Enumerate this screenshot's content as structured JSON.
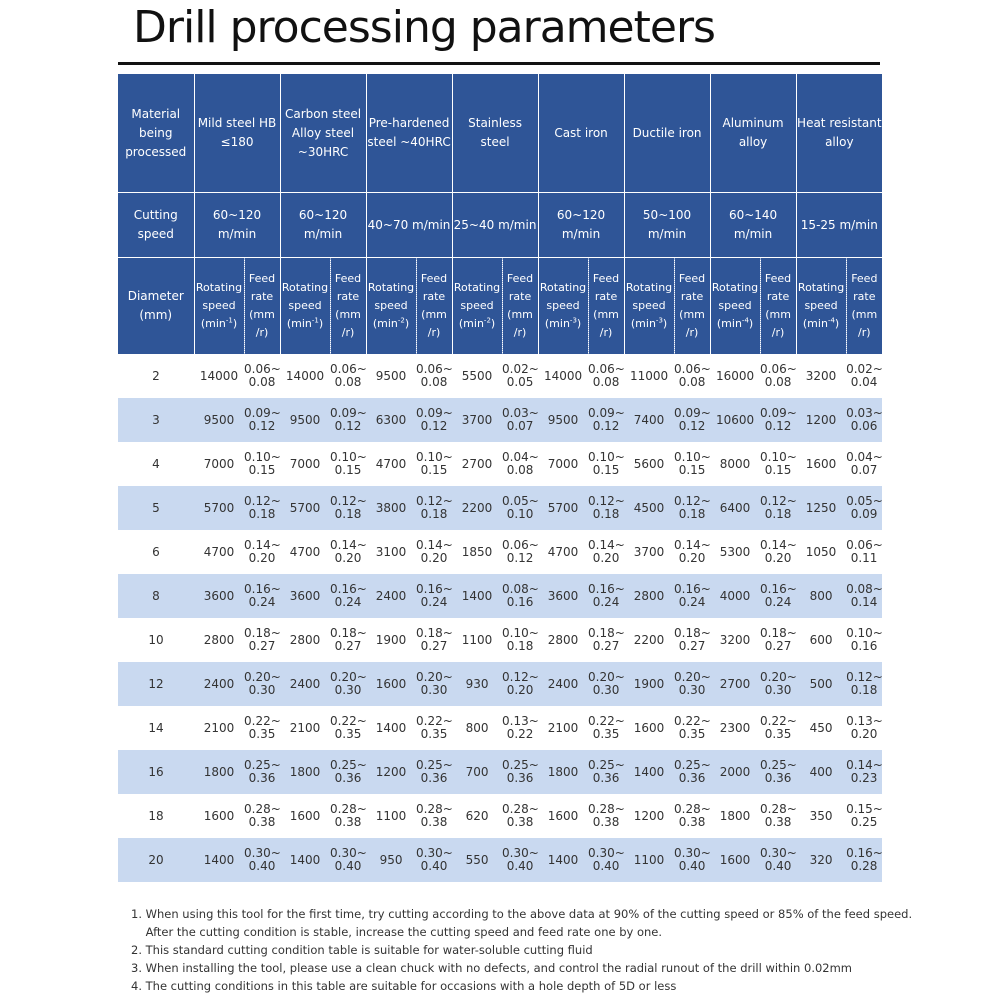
{
  "title": "Drill processing parameters",
  "header": {
    "material_label": "Material being processed",
    "cutting_speed_label": "Cutting speed",
    "diameter_label": "Diameter (mm)",
    "rotating_label": "Rotating speed",
    "feed_label": "Feed rate (mm /r)"
  },
  "materials": [
    {
      "name": "Mild steel HB ≤180",
      "cutting_speed": "60~120 m/min",
      "rs_unit": "(min",
      "rs_exp": "-1",
      "rs_close": ")"
    },
    {
      "name": "Carbon steel Alloy steel ~30HRC",
      "cutting_speed": "60~120 m/min",
      "rs_unit": "(min",
      "rs_exp": "-1",
      "rs_close": ")"
    },
    {
      "name": "Pre-hardened steel ~40HRC",
      "cutting_speed": "40~70 m/min",
      "rs_unit": "(min",
      "rs_exp": "-2",
      "rs_close": ")"
    },
    {
      "name": "Stainless steel",
      "cutting_speed": "25~40 m/min",
      "rs_unit": "(min",
      "rs_exp": "-2",
      "rs_close": ")"
    },
    {
      "name": "Cast iron",
      "cutting_speed": "60~120 m/min",
      "rs_unit": "(min",
      "rs_exp": "-3",
      "rs_close": ")"
    },
    {
      "name": "Ductile iron",
      "cutting_speed": "50~100 m/min",
      "rs_unit": "(min",
      "rs_exp": "-3",
      "rs_close": ")"
    },
    {
      "name": "Aluminum alloy",
      "cutting_speed": "60~140 m/min",
      "rs_unit": "(min",
      "rs_exp": "-4",
      "rs_close": ")"
    },
    {
      "name": "Heat resistant alloy",
      "cutting_speed": "15-25 m/min",
      "rs_unit": "(min",
      "rs_exp": "-4",
      "rs_close": ")"
    }
  ],
  "rows": [
    {
      "d": "2",
      "v": [
        "14000",
        "0.06~ 0.08",
        "14000",
        "0.06~ 0.08",
        "9500",
        "0.06~ 0.08",
        "5500",
        "0.02~ 0.05",
        "14000",
        "0.06~ 0.08",
        "11000",
        "0.06~ 0.08",
        "16000",
        "0.06~ 0.08",
        "3200",
        "0.02~ 0.04"
      ]
    },
    {
      "d": "3",
      "v": [
        "9500",
        "0.09~ 0.12",
        "9500",
        "0.09~ 0.12",
        "6300",
        "0.09~ 0.12",
        "3700",
        "0.03~ 0.07",
        "9500",
        "0.09~ 0.12",
        "7400",
        "0.09~ 0.12",
        "10600",
        "0.09~ 0.12",
        "1200",
        "0.03~ 0.06"
      ]
    },
    {
      "d": "4",
      "v": [
        "7000",
        "0.10~ 0.15",
        "7000",
        "0.10~ 0.15",
        "4700",
        "0.10~ 0.15",
        "2700",
        "0.04~ 0.08",
        "7000",
        "0.10~ 0.15",
        "5600",
        "0.10~ 0.15",
        "8000",
        "0.10~ 0.15",
        "1600",
        "0.04~ 0.07"
      ]
    },
    {
      "d": "5",
      "v": [
        "5700",
        "0.12~ 0.18",
        "5700",
        "0.12~ 0.18",
        "3800",
        "0.12~ 0.18",
        "2200",
        "0.05~ 0.10",
        "5700",
        "0.12~ 0.18",
        "4500",
        "0.12~ 0.18",
        "6400",
        "0.12~ 0.18",
        "1250",
        "0.05~ 0.09"
      ]
    },
    {
      "d": "6",
      "v": [
        "4700",
        "0.14~ 0.20",
        "4700",
        "0.14~ 0.20",
        "3100",
        "0.14~ 0.20",
        "1850",
        "0.06~ 0.12",
        "4700",
        "0.14~ 0.20",
        "3700",
        "0.14~ 0.20",
        "5300",
        "0.14~ 0.20",
        "1050",
        "0.06~ 0.11"
      ]
    },
    {
      "d": "8",
      "v": [
        "3600",
        "0.16~ 0.24",
        "3600",
        "0.16~ 0.24",
        "2400",
        "0.16~ 0.24",
        "1400",
        "0.08~ 0.16",
        "3600",
        "0.16~ 0.24",
        "2800",
        "0.16~ 0.24",
        "4000",
        "0.16~ 0.24",
        "800",
        "0.08~ 0.14"
      ]
    },
    {
      "d": "10",
      "v": [
        "2800",
        "0.18~ 0.27",
        "2800",
        "0.18~ 0.27",
        "1900",
        "0.18~ 0.27",
        "1100",
        "0.10~ 0.18",
        "2800",
        "0.18~ 0.27",
        "2200",
        "0.18~ 0.27",
        "3200",
        "0.18~ 0.27",
        "600",
        "0.10~ 0.16"
      ]
    },
    {
      "d": "12",
      "v": [
        "2400",
        "0.20~ 0.30",
        "2400",
        "0.20~ 0.30",
        "1600",
        "0.20~ 0.30",
        "930",
        "0.12~ 0.20",
        "2400",
        "0.20~ 0.30",
        "1900",
        "0.20~ 0.30",
        "2700",
        "0.20~ 0.30",
        "500",
        "0.12~ 0.18"
      ]
    },
    {
      "d": "14",
      "v": [
        "2100",
        "0.22~ 0.35",
        "2100",
        "0.22~ 0.35",
        "1400",
        "0.22~ 0.35",
        "800",
        "0.13~ 0.22",
        "2100",
        "0.22~ 0.35",
        "1600",
        "0.22~ 0.35",
        "2300",
        "0.22~ 0.35",
        "450",
        "0.13~ 0.20"
      ]
    },
    {
      "d": "16",
      "v": [
        "1800",
        "0.25~ 0.36",
        "1800",
        "0.25~ 0.36",
        "1200",
        "0.25~ 0.36",
        "700",
        "0.25~ 0.36",
        "1800",
        "0.25~ 0.36",
        "1400",
        "0.25~ 0.36",
        "2000",
        "0.25~ 0.36",
        "400",
        "0.14~ 0.23"
      ]
    },
    {
      "d": "18",
      "v": [
        "1600",
        "0.28~ 0.38",
        "1600",
        "0.28~ 0.38",
        "1100",
        "0.28~ 0.38",
        "620",
        "0.28~ 0.38",
        "1600",
        "0.28~ 0.38",
        "1200",
        "0.28~ 0.38",
        "1800",
        "0.28~ 0.38",
        "350",
        "0.15~ 0.25"
      ]
    },
    {
      "d": "20",
      "v": [
        "1400",
        "0.30~ 0.40",
        "1400",
        "0.30~ 0.40",
        "950",
        "0.30~ 0.40",
        "550",
        "0.30~ 0.40",
        "1400",
        "0.30~ 0.40",
        "1100",
        "0.30~ 0.40",
        "1600",
        "0.30~ 0.40",
        "320",
        "0.16~ 0.28"
      ]
    }
  ],
  "notes": [
    "1. When using this tool for the first time, try cutting according to the above data at 90% of the cutting speed or 85% of the feed speed.",
    "    After the cutting condition is stable, increase the cutting speed and feed rate one by one.",
    "2. This standard cutting condition table is suitable for water-soluble cutting fluid",
    "3. When installing the tool, please use a clean chuck with no defects, and control the radial runout of the drill within 0.02mm",
    "4. The cutting conditions in this table are suitable for occasions with a hole depth of 5D or less"
  ]
}
